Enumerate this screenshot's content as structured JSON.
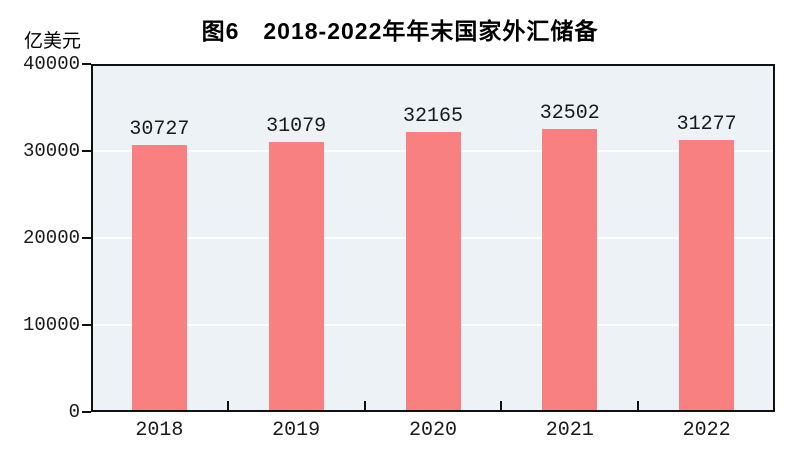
{
  "chart_data": {
    "type": "bar",
    "title": "图6　2018-2022年年末国家外汇储备",
    "unit_label": "亿美元",
    "categories": [
      "2018",
      "2019",
      "2020",
      "2021",
      "2022"
    ],
    "values": [
      30727,
      31079,
      32165,
      32502,
      31277
    ],
    "value_labels": [
      "30727",
      "31079",
      "32165",
      "32502",
      "31277"
    ],
    "xlabel": "",
    "ylabel": "亿美元",
    "ylim": [
      0,
      40000
    ],
    "ytick_interval": 10000,
    "ytick_labels": [
      "40000",
      "30000",
      "20000",
      "10000",
      "0"
    ],
    "grid": "on",
    "legend_position": "none",
    "colors": {
      "bar_fill": "#F98080",
      "plot_background": "#ECF2F6",
      "gridline": "#FFFFFF",
      "axis": "#111111",
      "text": "#1a1a1a"
    }
  }
}
